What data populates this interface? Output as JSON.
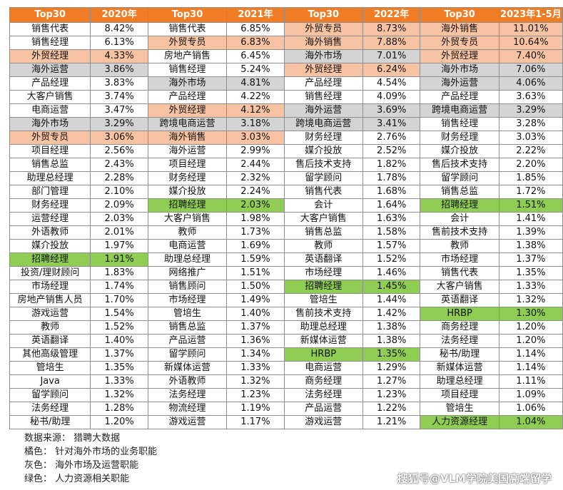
{
  "headers": [
    "Top30",
    "2020年",
    "Top30",
    "2021年",
    "Top30",
    "2022年",
    "Top30",
    "2023年1-5月"
  ],
  "colors": {
    "header": "#f07d24",
    "orange": "#f8c3a2",
    "gray": "#d4d4d4",
    "green": "#8fce53"
  },
  "rows": [
    [
      [
        "销售代表",
        "8.42%",
        ""
      ],
      [
        "销售代表",
        "6.85%",
        ""
      ],
      [
        "外贸专员",
        "8.73%",
        "o"
      ],
      [
        "海外销售",
        "11.01%",
        "o"
      ]
    ],
    [
      [
        "销售经理",
        "6.13%",
        ""
      ],
      [
        "外贸专员",
        "6.83%",
        "o"
      ],
      [
        "海外销售",
        "7.88%",
        "o"
      ],
      [
        "外贸专员",
        "10.64%",
        "o"
      ]
    ],
    [
      [
        "外贸经理",
        "4.33%",
        "o"
      ],
      [
        "房地产销售",
        "6.45%",
        ""
      ],
      [
        "海外市场",
        "7.01%",
        "g"
      ],
      [
        "外贸经理",
        "7.40%",
        "o"
      ]
    ],
    [
      [
        "海外运营",
        "3.86%",
        "g"
      ],
      [
        "销售经理",
        "5.24%",
        ""
      ],
      [
        "外贸经理",
        "6.24%",
        "o"
      ],
      [
        "海外市场",
        "7.06%",
        "g"
      ]
    ],
    [
      [
        "产品经理",
        "3.83%",
        ""
      ],
      [
        "海外市场",
        "4.81%",
        "g"
      ],
      [
        "产品经理",
        "4.54%",
        ""
      ],
      [
        "海外运营",
        "4.06%",
        "g"
      ]
    ],
    [
      [
        "大客户销售",
        "3.74%",
        ""
      ],
      [
        "产品经理",
        "4.22%",
        ""
      ],
      [
        "销售经理",
        "4.09%",
        ""
      ],
      [
        "产品经理",
        "3.63%",
        ""
      ]
    ],
    [
      [
        "电商运营",
        "3.47%",
        ""
      ],
      [
        "外贸经理",
        "4.12%",
        "o"
      ],
      [
        "海外运营",
        "3.69%",
        "g"
      ],
      [
        "跨境电商运营",
        "3.29%",
        "g"
      ]
    ],
    [
      [
        "海外市场",
        "3.29%",
        "g"
      ],
      [
        "跨境电商运营",
        "3.18%",
        "g"
      ],
      [
        "跨境电商运营",
        "3.41%",
        "g"
      ],
      [
        "销售经理",
        "3.28%",
        ""
      ]
    ],
    [
      [
        "外贸专员",
        "3.06%",
        "o"
      ],
      [
        "海外销售",
        "3.03%",
        "o"
      ],
      [
        "财务经理",
        "2.76%",
        ""
      ],
      [
        "财务经理",
        "3.03%",
        ""
      ]
    ],
    [
      [
        "项目经理",
        "2.56%",
        ""
      ],
      [
        "海外运营",
        "2.99%",
        ""
      ],
      [
        "媒介投放",
        "2.52%",
        ""
      ],
      [
        "媒介投放",
        "2.22%",
        ""
      ]
    ],
    [
      [
        "销售总监",
        "2.43%",
        ""
      ],
      [
        "项目经理",
        "2.44%",
        ""
      ],
      [
        "售后技术支持",
        "1.82%",
        ""
      ],
      [
        "售后技术支持",
        "2.20%",
        ""
      ]
    ],
    [
      [
        "助理总经理",
        "2.28%",
        ""
      ],
      [
        "财务经理",
        "2.32%",
        ""
      ],
      [
        "留学顾问",
        "1.78%",
        ""
      ],
      [
        "留学顾问",
        "1.85%",
        ""
      ]
    ],
    [
      [
        "部门管理",
        "2.10%",
        ""
      ],
      [
        "媒介投放",
        "2.24%",
        ""
      ],
      [
        "销售代表",
        "1.68%",
        ""
      ],
      [
        "销售总监",
        "1.72%",
        ""
      ]
    ],
    [
      [
        "财务经理",
        "2.09%",
        ""
      ],
      [
        "招聘经理",
        "2.03%",
        "n"
      ],
      [
        "会计",
        "1.64%",
        ""
      ],
      [
        "招聘经理",
        "1.51%",
        "n"
      ]
    ],
    [
      [
        "运营经理",
        "2.03%",
        ""
      ],
      [
        "大客户销售",
        "1.98%",
        ""
      ],
      [
        "大客户销售",
        "1.63%",
        ""
      ],
      [
        "会计",
        "1.41%",
        ""
      ]
    ],
    [
      [
        "外语教师",
        "2.01%",
        ""
      ],
      [
        "教师",
        "1.73%",
        ""
      ],
      [
        "销售总监",
        "1.58%",
        ""
      ],
      [
        "售前技术支持",
        "1.39%",
        ""
      ]
    ],
    [
      [
        "媒介投放",
        "1.97%",
        ""
      ],
      [
        "电商运营",
        "1.69%",
        ""
      ],
      [
        "教师",
        "1.57%",
        ""
      ],
      [
        "教师",
        "1.38%",
        ""
      ]
    ],
    [
      [
        "招聘经理",
        "1.91%",
        "n"
      ],
      [
        "助理总经理",
        "1.59%",
        ""
      ],
      [
        "英语翻译",
        "1.52%",
        ""
      ],
      [
        "市场经理",
        "1.37%",
        ""
      ]
    ],
    [
      [
        "投资/理财顾问",
        "1.83%",
        ""
      ],
      [
        "网络推广",
        "1.51%",
        ""
      ],
      [
        "市场经理",
        "1.46%",
        ""
      ],
      [
        "销售代表",
        "1.35%",
        ""
      ]
    ],
    [
      [
        "市场经理",
        "1.74%",
        ""
      ],
      [
        "销售顾问",
        "1.50%",
        ""
      ],
      [
        "招聘经理",
        "1.45%",
        "n"
      ],
      [
        "大客户销售",
        "1.33%",
        ""
      ]
    ],
    [
      [
        "房地产销售人员",
        "1.70%",
        ""
      ],
      [
        "市场经理",
        "1.49%",
        ""
      ],
      [
        "管培生",
        "1.44%",
        ""
      ],
      [
        "英语翻译",
        "1.32%",
        ""
      ]
    ],
    [
      [
        "游戏运营",
        "1.54%",
        ""
      ],
      [
        "管培生",
        "1.40%",
        ""
      ],
      [
        "售前技术支持",
        "1.42%",
        ""
      ],
      [
        "HRBP",
        "1.30%",
        "n"
      ]
    ],
    [
      [
        "教师",
        "1.52%",
        ""
      ],
      [
        "销售总监",
        "1.37%",
        ""
      ],
      [
        "助理总经理",
        "1.38%",
        ""
      ],
      [
        "商务经理",
        "1.20%",
        ""
      ]
    ],
    [
      [
        "英语翻译",
        "1.40%",
        ""
      ],
      [
        "产品运营",
        "1.36%",
        ""
      ],
      [
        "新媒体运营",
        "1.38%",
        ""
      ],
      [
        "法务经理",
        "1.20%",
        ""
      ]
    ],
    [
      [
        "其他高级管理",
        "1.37%",
        ""
      ],
      [
        "留学顾问",
        "1.34%",
        ""
      ],
      [
        "HRBP",
        "1.35%",
        "n"
      ],
      [
        "秘书/助理",
        "1.14%",
        ""
      ]
    ],
    [
      [
        "管培生",
        "1.35%",
        ""
      ],
      [
        "新媒体运营",
        "1.33%",
        ""
      ],
      [
        "电商运营",
        "1.29%",
        ""
      ],
      [
        "新媒体运营",
        "1.14%",
        ""
      ]
    ],
    [
      [
        "Java",
        "1.33%",
        ""
      ],
      [
        "外语教师",
        "1.32%",
        ""
      ],
      [
        "商务经理",
        "1.27%",
        ""
      ],
      [
        "助理总经理",
        "1.11%",
        ""
      ]
    ],
    [
      [
        "留学顾问",
        "1.32%",
        ""
      ],
      [
        "法务经理",
        "1.23%",
        ""
      ],
      [
        "法务经理",
        "1.23%",
        ""
      ],
      [
        "项目经理",
        "1.09%",
        ""
      ]
    ],
    [
      [
        "法务经理",
        "1.28%",
        ""
      ],
      [
        "物流经理",
        "1.19%",
        ""
      ],
      [
        "产品运营",
        "1.22%",
        ""
      ],
      [
        "管培生",
        "1.06%",
        ""
      ]
    ],
    [
      [
        "秘书/助理",
        "1.20%",
        ""
      ],
      [
        "游戏运营",
        "1.17%",
        ""
      ],
      [
        "游戏运营",
        "1.21%",
        ""
      ],
      [
        "人力资源经理",
        "1.04%",
        "n"
      ]
    ]
  ],
  "notes": {
    "source": "数据来源：  猎聘大数据",
    "orange": "橘色：  针对海外市场的业务职能",
    "gray": "灰色：  海外市场及运营职能",
    "green": "绿色：  人力资源相关职能"
  },
  "watermark": "搜狐号@VLM学院美国高端留学"
}
